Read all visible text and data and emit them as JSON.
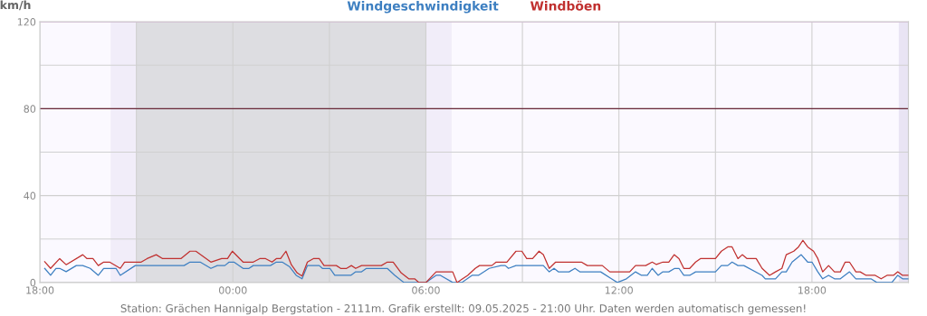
{
  "chart_data": {
    "type": "line",
    "ylabel": "km/h",
    "legend": "top",
    "grid": true,
    "marker": "none",
    "line_style": "solid",
    "xlim": [
      "2025-05-08T18:00",
      "2025-05-09T21:00"
    ],
    "ylim": [
      0,
      120
    ],
    "xticks": [
      {
        "value": "2025-05-08T18:00",
        "label": "18:00"
      },
      {
        "value": "2025-05-08T21:00",
        "label": null
      },
      {
        "value": "2025-05-09T00:00",
        "label": "00:00"
      },
      {
        "value": "2025-05-09T03:00",
        "label": null
      },
      {
        "value": "2025-05-09T06:00",
        "label": "06:00"
      },
      {
        "value": "2025-05-09T09:00",
        "label": null
      },
      {
        "value": "2025-05-09T12:00",
        "label": "12:00"
      },
      {
        "value": "2025-05-09T15:00",
        "label": null
      },
      {
        "value": "2025-05-09T18:00",
        "label": "18:00"
      },
      {
        "value": "2025-05-09T21:00",
        "label": null
      }
    ],
    "yticks": [
      0,
      {
        "value": 20,
        "label": null
      },
      40,
      {
        "value": 60,
        "label": null
      },
      80,
      {
        "value": 100,
        "label": null
      },
      120
    ],
    "bands": [
      {
        "axis": "x",
        "from": "2025-05-08T20:12",
        "to": "2025-05-08T21:00",
        "color": "#f1edf9"
      },
      {
        "axis": "x",
        "from": "2025-05-08T21:00",
        "to": "2025-05-09T06:00",
        "color": "#dddde1"
      },
      {
        "axis": "x",
        "from": "2025-05-09T06:00",
        "to": "2025-05-09T06:48",
        "color": "#f1edf9"
      },
      {
        "axis": "x",
        "from": "2025-05-09T20:42",
        "to": "2025-05-09T21:00",
        "color": "#e9e4f4"
      }
    ],
    "ref_lines": [
      {
        "axis": "y",
        "value": 80,
        "color": "#6a2a3a"
      },
      {
        "axis": "y",
        "value": 120,
        "color": "#ee82ee"
      }
    ],
    "series": [
      {
        "name": "Windgeschwindigkeit",
        "color": "#3d7fc1",
        "x": [
          "2025-05-08T18:09",
          "2025-05-08T18:20",
          "2025-05-08T18:30",
          "2025-05-08T18:37",
          "2025-05-08T18:49",
          "2025-05-08T19:08",
          "2025-05-08T19:20",
          "2025-05-08T19:34",
          "2025-05-08T19:49",
          "2025-05-08T19:59",
          "2025-05-08T20:22",
          "2025-05-08T20:30",
          "2025-05-08T20:58",
          "2025-05-08T22:29",
          "2025-05-08T22:40",
          "2025-05-08T22:59",
          "2025-05-08T23:19",
          "2025-05-08T23:31",
          "2025-05-08T23:45",
          "2025-05-08T23:53",
          "2025-05-09T00:02",
          "2025-05-09T00:19",
          "2025-05-09T00:30",
          "2025-05-09T00:38",
          "2025-05-09T01:10",
          "2025-05-09T01:21",
          "2025-05-09T01:32",
          "2025-05-09T01:46",
          "2025-05-09T01:58",
          "2025-05-09T02:09",
          "2025-05-09T02:19",
          "2025-05-09T02:41",
          "2025-05-09T02:47",
          "2025-05-09T03:01",
          "2025-05-09T03:10",
          "2025-05-09T03:40",
          "2025-05-09T03:49",
          "2025-05-09T04:00",
          "2025-05-09T04:09",
          "2025-05-09T04:48",
          "2025-05-09T05:02",
          "2025-05-09T05:19",
          "2025-05-09T05:47",
          "2025-05-09T06:00",
          "2025-05-09T06:19",
          "2025-05-09T06:27",
          "2025-05-09T06:50",
          "2025-05-09T07:07",
          "2025-05-09T07:26",
          "2025-05-09T07:38",
          "2025-05-09T07:58",
          "2025-05-09T08:20",
          "2025-05-09T08:28",
          "2025-05-09T08:34",
          "2025-05-09T08:48",
          "2025-05-09T09:39",
          "2025-05-09T09:50",
          "2025-05-09T09:59",
          "2025-05-09T10:07",
          "2025-05-09T10:27",
          "2025-05-09T10:38",
          "2025-05-09T10:47",
          "2025-05-09T11:26",
          "2025-05-09T11:46",
          "2025-05-09T11:57",
          "2025-05-09T12:14",
          "2025-05-09T12:31",
          "2025-05-09T12:42",
          "2025-05-09T12:53",
          "2025-05-09T13:02",
          "2025-05-09T13:13",
          "2025-05-09T13:22",
          "2025-05-09T13:33",
          "2025-05-09T13:44",
          "2025-05-09T13:52",
          "2025-05-09T14:01",
          "2025-05-09T14:12",
          "2025-05-09T14:23",
          "2025-05-09T15:00",
          "2025-05-09T15:11",
          "2025-05-09T15:23",
          "2025-05-09T15:31",
          "2025-05-09T15:42",
          "2025-05-09T15:53",
          "2025-05-09T16:27",
          "2025-05-09T16:33",
          "2025-05-09T16:52",
          "2025-05-09T17:04",
          "2025-05-09T17:12",
          "2025-05-09T17:23",
          "2025-05-09T17:40",
          "2025-05-09T17:52",
          "2025-05-09T18:00",
          "2025-05-09T18:11",
          "2025-05-09T18:20",
          "2025-05-09T18:31",
          "2025-05-09T18:42",
          "2025-05-09T18:53",
          "2025-05-09T19:10",
          "2025-05-09T19:22",
          "2025-05-09T19:50",
          "2025-05-09T20:01",
          "2025-05-09T20:29",
          "2025-05-09T20:40",
          "2025-05-09T20:49",
          "2025-05-09T21:00"
        ],
        "values": [
          6.5,
          3.3,
          6.5,
          6.5,
          5,
          7.8,
          7.8,
          6.5,
          3.3,
          6.5,
          6.5,
          3.3,
          7.8,
          7.8,
          9.4,
          9.4,
          6.5,
          7.8,
          7.8,
          9.4,
          9.4,
          6.5,
          6.5,
          7.8,
          7.8,
          9.4,
          9.4,
          7.2,
          3.3,
          1.7,
          7.8,
          7.8,
          6.5,
          6.5,
          3.3,
          3.3,
          4.9,
          4.9,
          6.5,
          6.5,
          3.3,
          0,
          0,
          0,
          3.3,
          3.3,
          0,
          0,
          3.3,
          3.3,
          6.5,
          7.8,
          7.8,
          6.5,
          7.8,
          7.8,
          4.9,
          6.5,
          4.9,
          4.9,
          6.5,
          4.9,
          4.9,
          1.7,
          0,
          1.7,
          4.9,
          3.3,
          3.3,
          6.5,
          3.3,
          4.9,
          4.9,
          6.5,
          6.5,
          3.3,
          3.3,
          4.9,
          4.9,
          7.8,
          7.8,
          9.4,
          7.8,
          7.8,
          3.3,
          1.7,
          1.7,
          4.9,
          4.9,
          9.4,
          12.8,
          9.4,
          9.4,
          4.9,
          1.7,
          3.3,
          1.7,
          1.7,
          4.9,
          1.7,
          1.7,
          0,
          0,
          3.3,
          1.7,
          1.7
        ]
      },
      {
        "name": "Windböen",
        "color": "#c0302f",
        "x": [
          "2025-05-08T18:09",
          "2025-05-08T18:20",
          "2025-05-08T18:37",
          "2025-05-08T18:49",
          "2025-05-08T19:20",
          "2025-05-08T19:28",
          "2025-05-08T19:39",
          "2025-05-08T19:49",
          "2025-05-08T19:59",
          "2025-05-08T20:10",
          "2025-05-08T20:30",
          "2025-05-08T20:38",
          "2025-05-08T21:09",
          "2025-05-08T21:20",
          "2025-05-08T21:37",
          "2025-05-08T21:49",
          "2025-05-08T22:23",
          "2025-05-08T22:40",
          "2025-05-08T22:51",
          "2025-05-08T23:19",
          "2025-05-08T23:39",
          "2025-05-08T23:50",
          "2025-05-08T23:59",
          "2025-05-09T00:19",
          "2025-05-09T00:38",
          "2025-05-09T00:50",
          "2025-05-09T01:01",
          "2025-05-09T01:13",
          "2025-05-09T01:21",
          "2025-05-09T01:29",
          "2025-05-09T01:39",
          "2025-05-09T01:49",
          "2025-05-09T02:00",
          "2025-05-09T02:09",
          "2025-05-09T02:19",
          "2025-05-09T02:30",
          "2025-05-09T02:41",
          "2025-05-09T02:50",
          "2025-05-09T03:13",
          "2025-05-09T03:21",
          "2025-05-09T03:32",
          "2025-05-09T03:41",
          "2025-05-09T03:49",
          "2025-05-09T04:00",
          "2025-05-09T04:37",
          "2025-05-09T04:48",
          "2025-05-09T04:59",
          "2025-05-09T05:14",
          "2025-05-09T05:28",
          "2025-05-09T05:39",
          "2025-05-09T05:47",
          "2025-05-09T06:00",
          "2025-05-09T06:19",
          "2025-05-09T06:50",
          "2025-05-09T06:58",
          "2025-05-09T07:18",
          "2025-05-09T07:32",
          "2025-05-09T07:40",
          "2025-05-09T08:03",
          "2025-05-09T08:11",
          "2025-05-09T08:31",
          "2025-05-09T08:48",
          "2025-05-09T08:59",
          "2025-05-09T09:08",
          "2025-05-09T09:19",
          "2025-05-09T09:31",
          "2025-05-09T09:39",
          "2025-05-09T09:50",
          "2025-05-09T10:02",
          "2025-05-09T10:50",
          "2025-05-09T11:01",
          "2025-05-09T11:29",
          "2025-05-09T11:43",
          "2025-05-09T11:57",
          "2025-05-09T12:20",
          "2025-05-09T12:31",
          "2025-05-09T12:50",
          "2025-05-09T13:02",
          "2025-05-09T13:10",
          "2025-05-09T13:22",
          "2025-05-09T13:33",
          "2025-05-09T13:43",
          "2025-05-09T13:52",
          "2025-05-09T14:01",
          "2025-05-09T14:12",
          "2025-05-09T14:23",
          "2025-05-09T14:32",
          "2025-05-09T15:00",
          "2025-05-09T15:11",
          "2025-05-09T15:23",
          "2025-05-09T15:31",
          "2025-05-09T15:42",
          "2025-05-09T15:50",
          "2025-05-09T15:59",
          "2025-05-09T16:16",
          "2025-05-09T16:27",
          "2025-05-09T16:41",
          "2025-05-09T16:52",
          "2025-05-09T17:04",
          "2025-05-09T17:12",
          "2025-05-09T17:26",
          "2025-05-09T17:35",
          "2025-05-09T17:43",
          "2025-05-09T17:52",
          "2025-05-09T18:03",
          "2025-05-09T18:11",
          "2025-05-09T18:20",
          "2025-05-09T18:31",
          "2025-05-09T18:42",
          "2025-05-09T18:53",
          "2025-05-09T19:02",
          "2025-05-09T19:10",
          "2025-05-09T19:22",
          "2025-05-09T19:30",
          "2025-05-09T19:41",
          "2025-05-09T19:58",
          "2025-05-09T20:09",
          "2025-05-09T20:20",
          "2025-05-09T20:32",
          "2025-05-09T20:40",
          "2025-05-09T20:49",
          "2025-05-09T21:00"
        ],
        "values": [
          9.6,
          6.5,
          11,
          8.2,
          12.8,
          11,
          11,
          7.8,
          9.4,
          9.4,
          6.5,
          9.4,
          9.4,
          11,
          12.8,
          11,
          11,
          14.4,
          14.4,
          9.4,
          11,
          11,
          14.4,
          9.4,
          9.4,
          11,
          11,
          9.4,
          11,
          11,
          14.4,
          8.2,
          4.4,
          3,
          9.4,
          11,
          11,
          7.8,
          7.8,
          6.5,
          6.5,
          7.8,
          6.5,
          7.8,
          7.8,
          9.4,
          9.4,
          4.4,
          1.7,
          1.7,
          0,
          0,
          4.9,
          4.9,
          0,
          3.3,
          6.5,
          7.8,
          7.8,
          9.4,
          9.4,
          14.4,
          14.4,
          11,
          11,
          14.4,
          12.8,
          6.5,
          9.4,
          9.4,
          7.8,
          7.8,
          4.9,
          4.9,
          4.9,
          7.8,
          7.8,
          9.4,
          8.3,
          9.4,
          9.4,
          12.8,
          11,
          6.5,
          6.5,
          9.4,
          11,
          11,
          14.4,
          16.4,
          16.4,
          11,
          12.8,
          11,
          11,
          6.5,
          3.3,
          4.9,
          6.5,
          12.8,
          14.4,
          16.4,
          19.4,
          16.4,
          14.4,
          11,
          4.9,
          7.8,
          4.9,
          4.9,
          9.4,
          9.4,
          4.9,
          4.9,
          3.3,
          3.3,
          1.7,
          3.3,
          3.3,
          4.9,
          3.3,
          3.3
        ]
      }
    ],
    "annotations": [
      "Station: Grächen Hannigalp Bergstation - 2111m. Grafik erstellt: 09.05.2025 - 21:00 Uhr. Daten werden automatisch gemessen!"
    ]
  }
}
